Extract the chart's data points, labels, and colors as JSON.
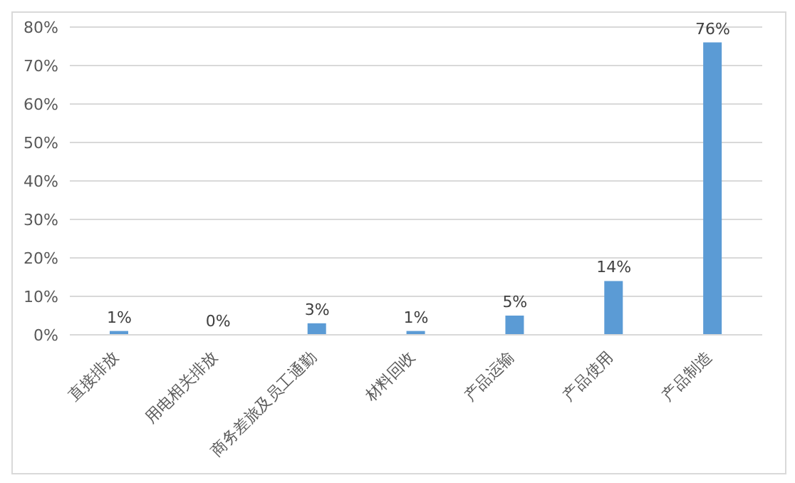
{
  "chart_data": {
    "type": "bar",
    "categories": [
      "直接排放",
      "用电相关排放",
      "商务差旅及员工通勤",
      "材料回收",
      "产品运输",
      "产品使用",
      "产品制造"
    ],
    "values": [
      1,
      0,
      3,
      1,
      5,
      14,
      76
    ],
    "value_labels": [
      "1%",
      "0%",
      "3%",
      "1%",
      "5%",
      "14%",
      "76%"
    ],
    "color": "#5b9bd5",
    "ylim": [
      0,
      80
    ],
    "yticks": [
      {
        "value": 0,
        "label": "0%"
      },
      {
        "value": 10,
        "label": "10%"
      },
      {
        "value": 20,
        "label": "20%"
      },
      {
        "value": 30,
        "label": "30%"
      },
      {
        "value": 40,
        "label": "40%"
      },
      {
        "value": 50,
        "label": "50%"
      },
      {
        "value": 60,
        "label": "60%"
      },
      {
        "value": 70,
        "label": "70%"
      },
      {
        "value": 80,
        "label": "80%"
      }
    ],
    "grid": "y",
    "legend": false
  }
}
